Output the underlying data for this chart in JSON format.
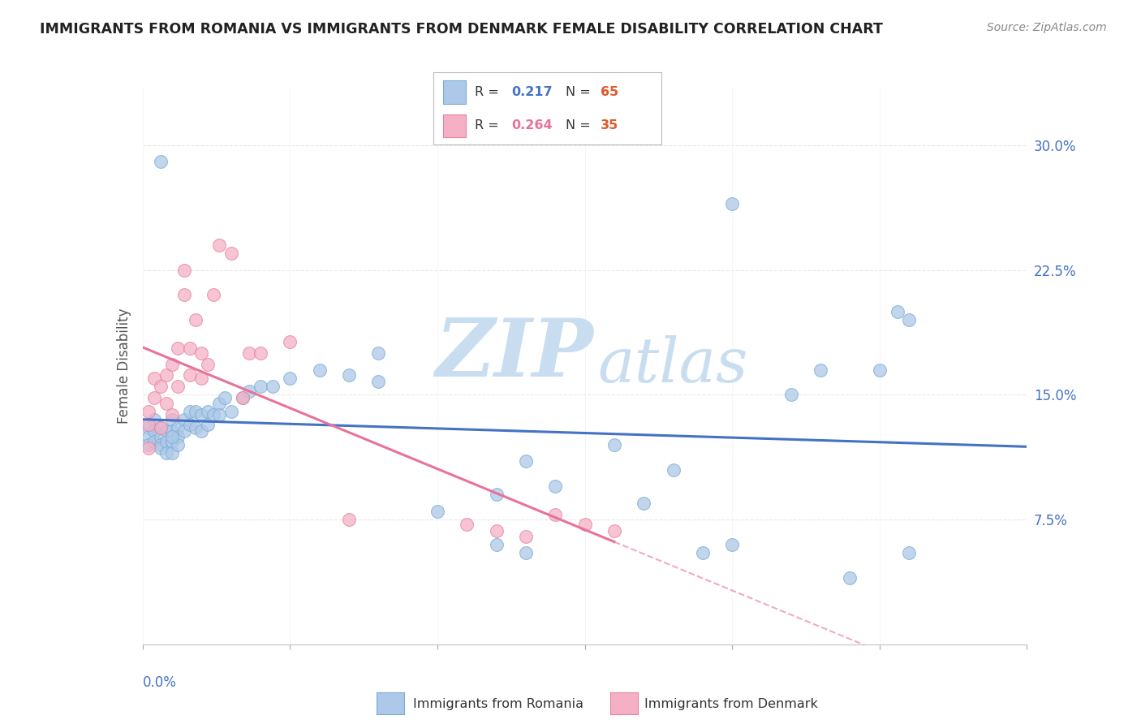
{
  "title": "IMMIGRANTS FROM ROMANIA VS IMMIGRANTS FROM DENMARK FEMALE DISABILITY CORRELATION CHART",
  "source": "Source: ZipAtlas.com",
  "ylabel": "Female Disability",
  "ytick_labels": [
    "7.5%",
    "15.0%",
    "22.5%",
    "30.0%"
  ],
  "ytick_values": [
    0.075,
    0.15,
    0.225,
    0.3
  ],
  "xlim": [
    0.0,
    0.15
  ],
  "ylim": [
    0.0,
    0.335
  ],
  "romania_color": "#adc8e8",
  "denmark_color": "#f5b0c5",
  "romania_edge": "#7aadd4",
  "denmark_edge": "#e882a0",
  "trendline_romania_color": "#4472c4",
  "trendline_denmark_color": "#e8729a",
  "legend_color_R_romania": "#4472c4",
  "legend_color_N_romania": "#e05a2b",
  "legend_color_R_denmark": "#e8729a",
  "legend_color_N_denmark": "#e05a2b",
  "romania_x": [
    0.001,
    0.001,
    0.001,
    0.002,
    0.002,
    0.002,
    0.003,
    0.003,
    0.003,
    0.003,
    0.004,
    0.004,
    0.004,
    0.005,
    0.005,
    0.005,
    0.005,
    0.006,
    0.006,
    0.006,
    0.007,
    0.007,
    0.008,
    0.008,
    0.009,
    0.009,
    0.01,
    0.01,
    0.011,
    0.011,
    0.012,
    0.013,
    0.013,
    0.014,
    0.015,
    0.017,
    0.018,
    0.02,
    0.022,
    0.025,
    0.03,
    0.035,
    0.04,
    0.04,
    0.05,
    0.06,
    0.065,
    0.07,
    0.08,
    0.085,
    0.09,
    0.095,
    0.1,
    0.11,
    0.115,
    0.12,
    0.125,
    0.128,
    0.13,
    0.13,
    0.1,
    0.06,
    0.065,
    0.005,
    0.003
  ],
  "romania_y": [
    0.13,
    0.125,
    0.12,
    0.135,
    0.128,
    0.122,
    0.13,
    0.125,
    0.12,
    0.118,
    0.128,
    0.122,
    0.115,
    0.135,
    0.128,
    0.122,
    0.115,
    0.13,
    0.125,
    0.12,
    0.135,
    0.128,
    0.14,
    0.132,
    0.14,
    0.13,
    0.138,
    0.128,
    0.14,
    0.132,
    0.138,
    0.145,
    0.138,
    0.148,
    0.14,
    0.148,
    0.152,
    0.155,
    0.155,
    0.16,
    0.165,
    0.162,
    0.158,
    0.175,
    0.08,
    0.09,
    0.11,
    0.095,
    0.12,
    0.085,
    0.105,
    0.055,
    0.06,
    0.15,
    0.165,
    0.04,
    0.165,
    0.2,
    0.055,
    0.195,
    0.265,
    0.06,
    0.055,
    0.125,
    0.29
  ],
  "denmark_x": [
    0.001,
    0.001,
    0.001,
    0.002,
    0.002,
    0.003,
    0.003,
    0.004,
    0.004,
    0.005,
    0.005,
    0.006,
    0.006,
    0.007,
    0.007,
    0.008,
    0.008,
    0.009,
    0.01,
    0.01,
    0.011,
    0.012,
    0.013,
    0.015,
    0.017,
    0.018,
    0.02,
    0.025,
    0.035,
    0.055,
    0.06,
    0.07,
    0.075,
    0.08,
    0.065
  ],
  "denmark_y": [
    0.14,
    0.132,
    0.118,
    0.16,
    0.148,
    0.155,
    0.13,
    0.162,
    0.145,
    0.168,
    0.138,
    0.178,
    0.155,
    0.225,
    0.21,
    0.178,
    0.162,
    0.195,
    0.175,
    0.16,
    0.168,
    0.21,
    0.24,
    0.235,
    0.148,
    0.175,
    0.175,
    0.182,
    0.075,
    0.072,
    0.068,
    0.078,
    0.072,
    0.068,
    0.065
  ],
  "watermark_line1": "ZIP",
  "watermark_line2": "atlas",
  "watermark_color": "#c8ddf0",
  "background_color": "#ffffff",
  "grid_color": "#e8e8e8"
}
